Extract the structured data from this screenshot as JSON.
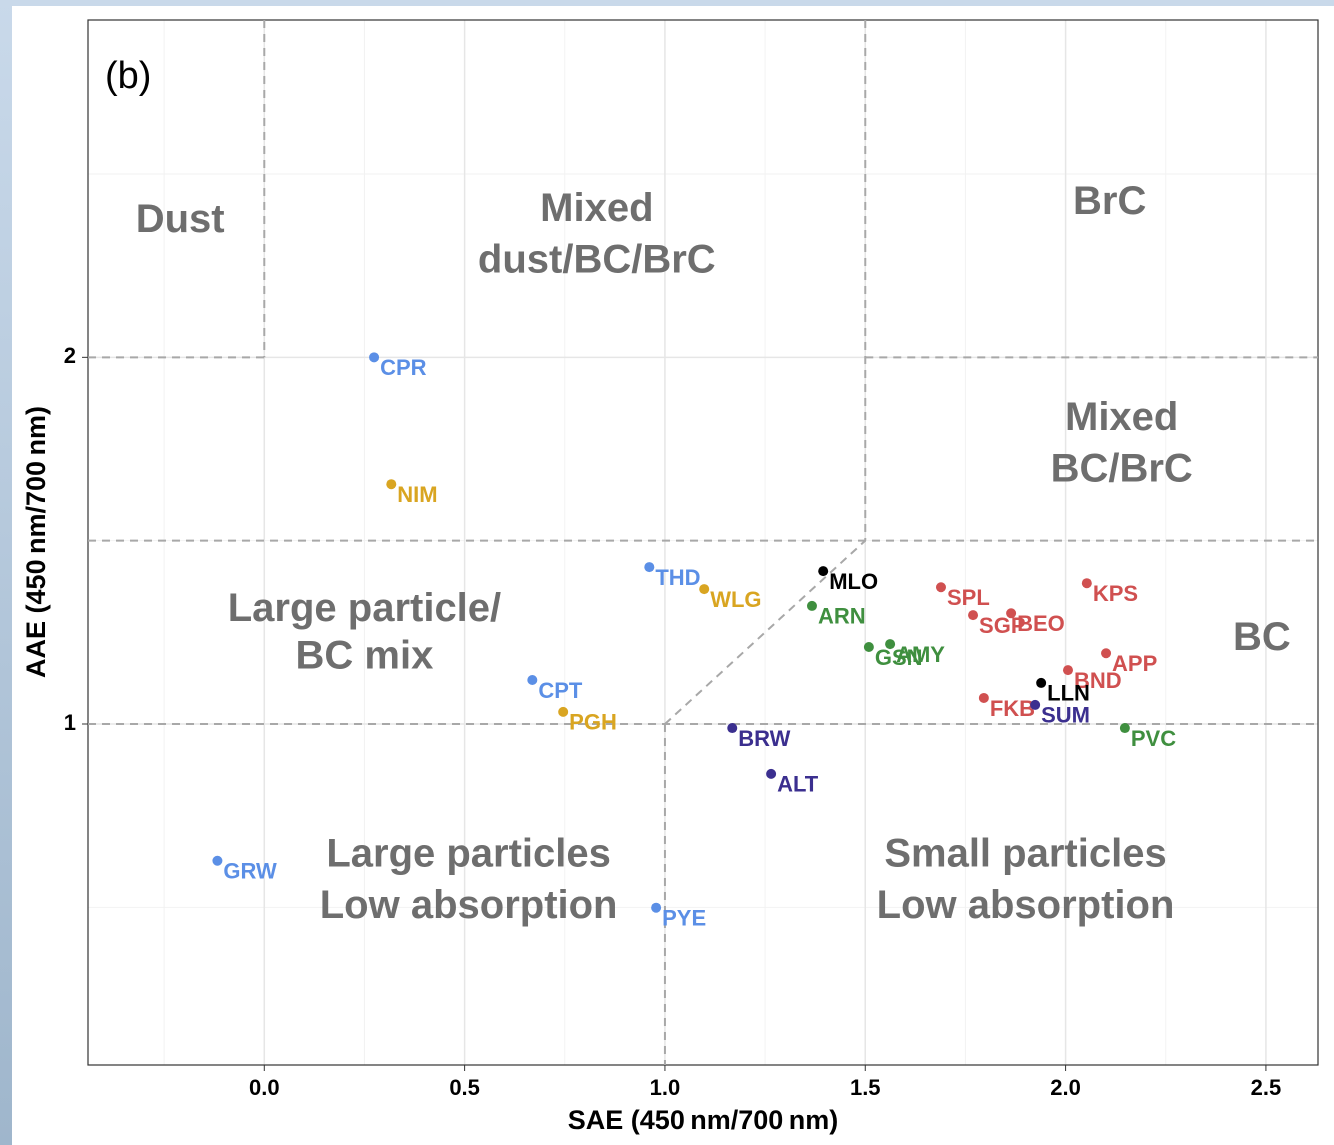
{
  "chart_data": {
    "type": "scatter",
    "panel_tag": "(b)",
    "x_label": "SAE (450 nm/700 nm)",
    "y_label": "AAE (450 nm/700 nm)",
    "xlim": [
      -0.44,
      2.63
    ],
    "ylim": [
      0.07,
      2.92
    ],
    "xticks": [
      {
        "value": 0,
        "label": "0.0"
      },
      0.5,
      {
        "value": 1,
        "label": "1.0"
      },
      1.5,
      {
        "value": 2,
        "label": "2.0"
      },
      2.5
    ],
    "yticks": [
      1,
      2
    ],
    "grid": true,
    "region_lines": [
      [
        0,
        2.92,
        0,
        2
      ],
      [
        -0.44,
        2,
        0,
        2
      ],
      [
        1.5,
        2.92,
        1.5,
        1.5
      ],
      [
        1.5,
        2,
        2.63,
        2
      ],
      [
        -0.44,
        1.5,
        2.63,
        1.5
      ],
      [
        1,
        1,
        1.5,
        1.5
      ],
      [
        -0.44,
        1,
        2.63,
        1
      ],
      [
        1,
        1,
        1,
        0.07
      ]
    ],
    "regions": [
      {
        "lines": [
          "Dust"
        ],
        "x": -0.21,
        "y": [
          2.37
        ]
      },
      {
        "lines": [
          "Mixed",
          "dust/BC/BrC"
        ],
        "x": 0.83,
        "y": [
          2.4,
          2.26
        ]
      },
      {
        "lines": [
          "BrC"
        ],
        "x": 2.11,
        "y": [
          2.42
        ]
      },
      {
        "lines": [
          "Mixed",
          "BC/BrC"
        ],
        "x": 2.14,
        "y": [
          1.83,
          1.69
        ]
      },
      {
        "lines": [
          "Large  particle/",
          "BC mix"
        ],
        "x": 0.25,
        "y": [
          1.31,
          1.18
        ]
      },
      {
        "lines": [
          "BC"
        ],
        "x": 2.49,
        "y": [
          1.23
        ]
      },
      {
        "lines": [
          "Large  particles",
          "Low absorption"
        ],
        "x": 0.51,
        "y": [
          0.64,
          0.5
        ]
      },
      {
        "lines": [
          "Small particles",
          "Low absorption"
        ],
        "x": 1.9,
        "y": [
          0.64,
          0.5
        ]
      }
    ],
    "points": [
      {
        "label": "CPR",
        "x": 0.274,
        "y": 2.0,
        "color": "#5b8fe6"
      },
      {
        "label": "NIM",
        "x": 0.317,
        "y": 1.654,
        "color": "#d9a521"
      },
      {
        "label": "THD",
        "x": 0.961,
        "y": 1.428,
        "color": "#5b8fe6"
      },
      {
        "label": "WLG",
        "x": 1.098,
        "y": 1.368,
        "color": "#d9a521"
      },
      {
        "label": "MLO",
        "x": 1.395,
        "y": 1.417,
        "color": "#000000"
      },
      {
        "label": "ARN",
        "x": 1.367,
        "y": 1.322,
        "color": "#3f8f3f"
      },
      {
        "label": "SPL",
        "x": 1.689,
        "y": 1.373,
        "color": "#d05050"
      },
      {
        "label": "KPS",
        "x": 2.053,
        "y": 1.384,
        "color": "#d05050"
      },
      {
        "label": "SGP",
        "x": 1.769,
        "y": 1.297,
        "color": "#d05050"
      },
      {
        "label": "BEO",
        "x": 1.864,
        "y": 1.302,
        "color": "#d05050"
      },
      {
        "label": "GSN",
        "x": 1.509,
        "y": 1.21,
        "color": "#3f8f3f"
      },
      {
        "label": "AMY",
        "x": 1.562,
        "y": 1.218,
        "color": "#3f8f3f"
      },
      {
        "label": "APP",
        "x": 2.101,
        "y": 1.193,
        "color": "#d05050"
      },
      {
        "label": "BND",
        "x": 2.006,
        "y": 1.147,
        "color": "#d05050"
      },
      {
        "label": "LLN",
        "x": 1.939,
        "y": 1.112,
        "color": "#000000"
      },
      {
        "label": "FKB",
        "x": 1.796,
        "y": 1.071,
        "color": "#d05050"
      },
      {
        "label": "SUM",
        "x": 1.924,
        "y": 1.052,
        "color": "#3b2f8f"
      },
      {
        "label": "PVC",
        "x": 2.148,
        "y": 0.989,
        "color": "#3f8f3f"
      },
      {
        "label": "CPT",
        "x": 0.669,
        "y": 1.12,
        "color": "#5b8fe6"
      },
      {
        "label": "PGH",
        "x": 0.746,
        "y": 1.033,
        "color": "#d9a521"
      },
      {
        "label": "BRW",
        "x": 1.168,
        "y": 0.989,
        "color": "#3b2f8f"
      },
      {
        "label": "ALT",
        "x": 1.265,
        "y": 0.864,
        "color": "#3b2f8f"
      },
      {
        "label": "GRW",
        "x": -0.117,
        "y": 0.627,
        "color": "#5b8fe6"
      },
      {
        "label": "PYE",
        "x": 0.978,
        "y": 0.499,
        "color": "#5b8fe6"
      }
    ]
  }
}
